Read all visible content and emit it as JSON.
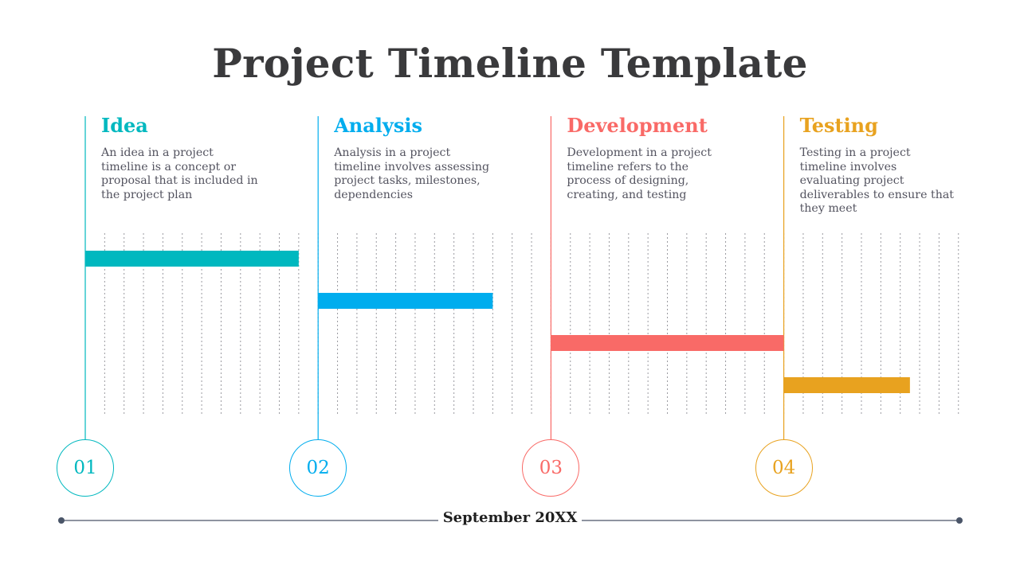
{
  "title": "Project Timeline Template",
  "footer": {
    "date": "September 20XX"
  },
  "colors": {
    "idea": "#00b8bf",
    "analysis": "#00adee",
    "development": "#f96a67",
    "testing": "#e8a21f",
    "axis": "#4a5568"
  },
  "chart_data": {
    "type": "gantt",
    "phases": [
      {
        "number": "01",
        "title": "Idea",
        "description": "An idea in a project timeline is a concept or proposal that is included in the project plan",
        "color": "#00b8bf",
        "start": 0,
        "end": 11
      },
      {
        "number": "02",
        "title": "Analysis",
        "description": "Analysis in a project timeline involves assessing project tasks, milestones, dependencies",
        "color": "#00adee",
        "start": 12,
        "end": 21
      },
      {
        "number": "03",
        "title": "Development",
        "description": "Development in a project timeline refers to the process of designing, creating, and testing",
        "color": "#f96a67",
        "start": 24,
        "end": 36
      },
      {
        "number": "04",
        "title": "Testing",
        "description": "Testing in a project timeline involves evaluating project deliverables to ensure that they meet",
        "color": "#e8a21f",
        "start": 36,
        "end": 42.5
      }
    ],
    "x_range": [
      0,
      45
    ]
  }
}
